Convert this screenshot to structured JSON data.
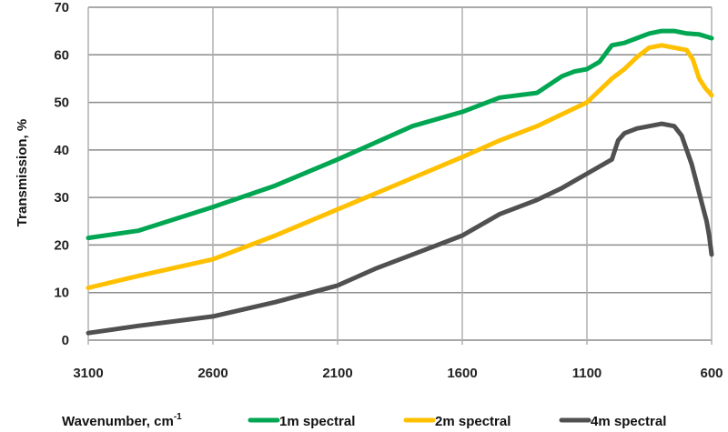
{
  "chart_data": {
    "type": "line",
    "xlabel": "Wavenumber, cm",
    "xlabel_superscript": "-1",
    "ylabel": "Transmission, %",
    "xlim": [
      3100,
      600
    ],
    "ylim": [
      0,
      70
    ],
    "x_reversed": true,
    "x_ticks": [
      3100,
      2600,
      2100,
      1600,
      1100,
      600
    ],
    "y_ticks": [
      0,
      10,
      20,
      30,
      40,
      50,
      60,
      70
    ],
    "grid": true,
    "legend_position": "bottom",
    "series": [
      {
        "name": "1m spectral",
        "color": "#00a651",
        "x": [
          3100,
          2900,
          2600,
          2350,
          2100,
          1950,
          1800,
          1600,
          1450,
          1300,
          1200,
          1150,
          1100,
          1050,
          1000,
          950,
          900,
          850,
          800,
          750,
          700,
          650,
          600
        ],
        "y": [
          21.5,
          23,
          28,
          32.5,
          38,
          41.5,
          45,
          48,
          51,
          52,
          55.5,
          56.5,
          57,
          58.5,
          62,
          62.5,
          63.5,
          64.5,
          65,
          65,
          64.5,
          64.3,
          63.5
        ]
      },
      {
        "name": "2m spectral",
        "color": "#ffc000",
        "x": [
          3100,
          2900,
          2600,
          2350,
          2100,
          1850,
          1600,
          1450,
          1300,
          1200,
          1100,
          1050,
          1000,
          950,
          900,
          850,
          800,
          750,
          700,
          675,
          650,
          625,
          600
        ],
        "y": [
          11,
          13.5,
          17,
          22,
          27.5,
          33,
          38.5,
          42,
          45,
          47.5,
          50,
          52.5,
          55,
          57,
          59.5,
          61.5,
          62,
          61.5,
          61,
          59,
          55,
          53,
          51.5
        ]
      },
      {
        "name": "4m spectral",
        "color": "#505050",
        "x": [
          3100,
          2900,
          2600,
          2350,
          2100,
          1950,
          1800,
          1600,
          1450,
          1300,
          1200,
          1150,
          1100,
          1000,
          975,
          950,
          900,
          850,
          800,
          750,
          720,
          700,
          680,
          660,
          640,
          620,
          610,
          600
        ],
        "y": [
          1.5,
          3,
          5,
          8,
          11.5,
          15,
          18,
          22,
          26.5,
          29.5,
          32,
          33.5,
          35,
          38,
          42,
          43.5,
          44.5,
          45,
          45.5,
          45,
          43,
          40,
          37,
          33,
          29,
          25,
          22,
          18
        ]
      }
    ]
  }
}
